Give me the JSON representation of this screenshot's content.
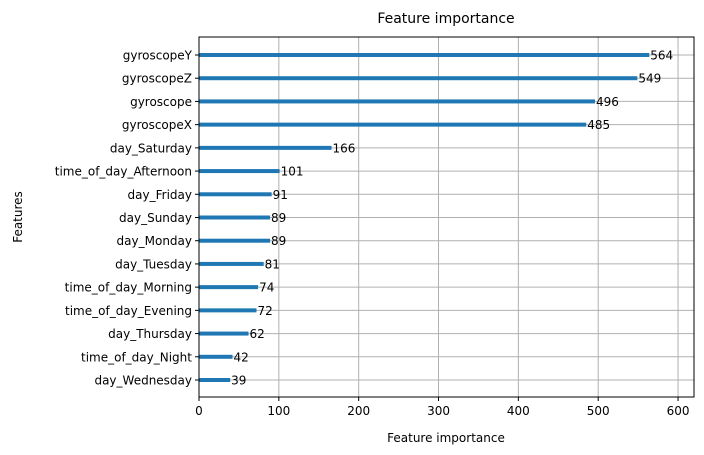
{
  "chart_data": {
    "type": "bar",
    "orientation": "horizontal",
    "title": "Feature importance",
    "xlabel": "Feature importance",
    "ylabel": "Features",
    "xlim": [
      0,
      620
    ],
    "xticks": [
      0,
      100,
      200,
      300,
      400,
      500,
      600
    ],
    "grid": true,
    "categories": [
      "gyroscopeY",
      "gyroscopeZ",
      "gyroscope",
      "gyroscopeX",
      "day_Saturday",
      "time_of_day_Afternoon",
      "day_Friday",
      "day_Sunday",
      "day_Monday",
      "day_Tuesday",
      "time_of_day_Morning",
      "time_of_day_Evening",
      "day_Thursday",
      "time_of_day_Night",
      "day_Wednesday"
    ],
    "values": [
      564,
      549,
      496,
      485,
      166,
      101,
      91,
      89,
      89,
      81,
      74,
      72,
      62,
      42,
      39
    ],
    "colors": {
      "bar": "#1f77b4",
      "grid": "#b0b0b0"
    }
  }
}
